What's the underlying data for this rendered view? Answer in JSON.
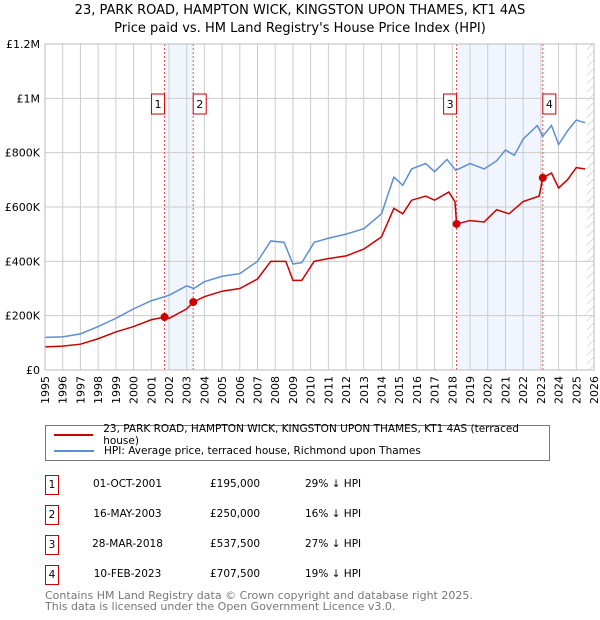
{
  "title": "23, PARK ROAD, HAMPTON WICK, KINGSTON UPON THAMES, KT1 4AS",
  "subtitle": "Price paid vs. HM Land Registry's House Price Index (HPI)",
  "chart_data": {
    "type": "line",
    "xlim": [
      1995,
      2026
    ],
    "ylim": [
      0,
      1200000
    ],
    "y_ticks": [
      0,
      200000,
      400000,
      600000,
      800000,
      1000000,
      1200000
    ],
    "y_tick_labels": [
      "£0",
      "£200K",
      "£400K",
      "£600K",
      "£800K",
      "£1M",
      "£1.2M"
    ],
    "x_ticks": [
      1995,
      1996,
      1997,
      1998,
      1999,
      2000,
      2001,
      2002,
      2003,
      2004,
      2005,
      2006,
      2007,
      2008,
      2009,
      2010,
      2011,
      2012,
      2013,
      2014,
      2015,
      2016,
      2017,
      2018,
      2019,
      2020,
      2021,
      2022,
      2023,
      2024,
      2025,
      2026
    ],
    "x_tick_labels": [
      "1995",
      "1996",
      "1997",
      "1998",
      "1999",
      "2000",
      "2001",
      "2002",
      "2003",
      "2004",
      "2005",
      "2006",
      "2007",
      "2008",
      "2009",
      "2010",
      "2011",
      "2012",
      "2013",
      "2014",
      "2015",
      "2016",
      "2017",
      "2018",
      "2019",
      "2020",
      "2021",
      "2022",
      "2023",
      "2024",
      "2025",
      "2026"
    ],
    "grid": true,
    "forecast_hatch_from": 2025.6,
    "shaded_ranges": [
      [
        2001.75,
        2003.37
      ],
      [
        2018.24,
        2023.11
      ]
    ],
    "series": [
      {
        "name": "23, PARK ROAD, HAMPTON WICK, KINGSTON UPON THAMES, KT1 4AS (terraced house)",
        "color": "#cc0000",
        "x": [
          1995,
          1996,
          1997,
          1998,
          1999,
          2000,
          2001,
          2001.75,
          2002,
          2003,
          2003.37,
          2004,
          2005,
          2006,
          2007,
          2007.75,
          2008.6,
          2009,
          2009.5,
          2010.2,
          2011,
          2012,
          2013,
          2014,
          2014.7,
          2015.2,
          2015.7,
          2016.5,
          2017,
          2017.8,
          2018.15,
          2018.24,
          2019,
          2019.8,
          2020.5,
          2021.2,
          2022,
          2022.9,
          2023.11,
          2023.6,
          2024,
          2024.5,
          2025,
          2025.5
        ],
        "y": [
          85000,
          88000,
          95000,
          115000,
          140000,
          160000,
          185000,
          195000,
          190000,
          225000,
          250000,
          270000,
          290000,
          300000,
          335000,
          400000,
          400000,
          330000,
          330000,
          400000,
          410000,
          420000,
          445000,
          490000,
          595000,
          575000,
          625000,
          640000,
          625000,
          655000,
          620000,
          537500,
          550000,
          545000,
          590000,
          575000,
          620000,
          640000,
          707500,
          725000,
          670000,
          700000,
          745000,
          740000
        ]
      },
      {
        "name": "HPI: Average price, terraced house, Richmond upon Thames",
        "color": "#5b8fd4",
        "x": [
          1995,
          1996,
          1997,
          1998,
          1999,
          2000,
          2001,
          2002,
          2003,
          2003.4,
          2004,
          2005,
          2006,
          2007,
          2007.75,
          2008.5,
          2009,
          2009.5,
          2010.2,
          2011,
          2012,
          2013,
          2014,
          2014.7,
          2015.2,
          2015.7,
          2016.5,
          2017,
          2017.7,
          2018.2,
          2019,
          2019.8,
          2020.5,
          2021,
          2021.5,
          2022,
          2022.8,
          2023.1,
          2023.6,
          2024,
          2024.5,
          2025,
          2025.5
        ],
        "y": [
          120000,
          122000,
          133000,
          160000,
          190000,
          225000,
          255000,
          275000,
          310000,
          300000,
          325000,
          345000,
          355000,
          400000,
          475000,
          470000,
          390000,
          395000,
          470000,
          485000,
          500000,
          520000,
          575000,
          710000,
          680000,
          740000,
          760000,
          730000,
          775000,
          735000,
          760000,
          740000,
          770000,
          810000,
          790000,
          850000,
          900000,
          860000,
          900000,
          830000,
          880000,
          920000,
          910000
        ]
      }
    ],
    "sales": [
      {
        "label": "1",
        "x": 2001.75,
        "y": 195000
      },
      {
        "label": "2",
        "x": 2003.37,
        "y": 250000
      },
      {
        "label": "3",
        "x": 2018.24,
        "y": 537500
      },
      {
        "label": "4",
        "x": 2023.11,
        "y": 707500
      }
    ]
  },
  "legend": {
    "property": "23, PARK ROAD, HAMPTON WICK, KINGSTON UPON THAMES, KT1 4AS (terraced house)",
    "hpi": "HPI: Average price, terraced house, Richmond upon Thames",
    "property_color": "#cc0000",
    "hpi_color": "#5b8fd4"
  },
  "transactions": [
    {
      "num": "1",
      "date": "01-OCT-2001",
      "price": "£195,000",
      "hpi": "29% ↓ HPI"
    },
    {
      "num": "2",
      "date": "16-MAY-2003",
      "price": "£250,000",
      "hpi": "16% ↓ HPI"
    },
    {
      "num": "3",
      "date": "28-MAR-2018",
      "price": "£537,500",
      "hpi": "27% ↓ HPI"
    },
    {
      "num": "4",
      "date": "10-FEB-2023",
      "price": "£707,500",
      "hpi": "19% ↓ HPI"
    }
  ],
  "footer": {
    "line1": "Contains HM Land Registry data © Crown copyright and database right 2025.",
    "line2": "This data is licensed under the Open Government Licence v3.0."
  }
}
